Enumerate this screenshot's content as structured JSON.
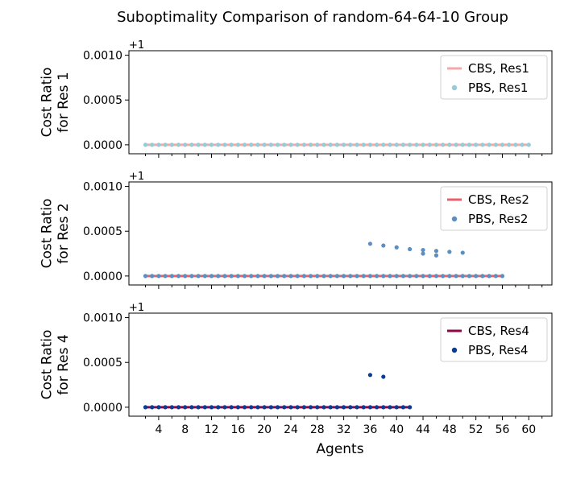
{
  "title": "Suboptimality Comparison of random-64-64-10 Group",
  "xlabel": "Agents",
  "x_ticks": [
    4,
    8,
    12,
    16,
    20,
    24,
    28,
    32,
    36,
    40,
    44,
    48,
    52,
    56,
    60
  ],
  "colors": {
    "cbs_res1": "#f4a9a8",
    "pbs_res1": "#96cbd8",
    "cbs_res2": "#e8606a",
    "pbs_res2": "#5b8fc4",
    "cbs_res4": "#8e0848",
    "pbs_res4": "#0a3d91"
  },
  "chart_data": [
    {
      "type": "line",
      "ylabel": [
        "Cost Ratio",
        "for Res 1"
      ],
      "offset_text": "+1",
      "xlim": [
        -0.5,
        63.5
      ],
      "ylim": [
        -0.0001,
        0.00105
      ],
      "y_ticks": [
        0.0,
        0.0005,
        0.001
      ],
      "y_tick_labels": [
        "0.0000",
        "0.0005",
        "0.0010"
      ],
      "legend_position": "top-right",
      "series": [
        {
          "name": "CBS, Res1",
          "style": "line",
          "color": "#f4a9a8",
          "x": [
            2,
            60
          ],
          "y": [
            0,
            0
          ]
        },
        {
          "name": "PBS, Res1",
          "style": "points",
          "color": "#96cbd8",
          "x": [
            2,
            3,
            4,
            5,
            6,
            7,
            8,
            9,
            10,
            11,
            12,
            13,
            14,
            15,
            16,
            17,
            18,
            19,
            20,
            21,
            22,
            23,
            24,
            25,
            26,
            27,
            28,
            29,
            30,
            31,
            32,
            33,
            34,
            35,
            36,
            37,
            38,
            39,
            40,
            41,
            42,
            43,
            44,
            45,
            46,
            47,
            48,
            49,
            50,
            51,
            52,
            53,
            54,
            55,
            56,
            57,
            58,
            59,
            60
          ],
          "y": [
            0,
            0,
            0,
            0,
            0,
            0,
            0,
            0,
            0,
            0,
            0,
            0,
            0,
            0,
            0,
            0,
            0,
            0,
            0,
            0,
            0,
            0,
            0,
            0,
            0,
            0,
            0,
            0,
            0,
            0,
            0,
            0,
            0,
            0,
            0,
            0,
            0,
            0,
            0,
            0,
            0,
            0,
            0,
            0,
            0,
            0,
            0,
            0,
            0,
            0,
            0,
            0,
            0,
            0,
            0,
            0,
            0,
            0,
            0
          ]
        }
      ]
    },
    {
      "type": "line",
      "ylabel": [
        "Cost Ratio",
        "for Res 2"
      ],
      "offset_text": "+1",
      "xlim": [
        -0.5,
        63.5
      ],
      "ylim": [
        -0.0001,
        0.00105
      ],
      "y_ticks": [
        0.0,
        0.0005,
        0.001
      ],
      "y_tick_labels": [
        "0.0000",
        "0.0005",
        "0.0010"
      ],
      "legend_position": "top-right",
      "series": [
        {
          "name": "CBS, Res2",
          "style": "line",
          "color": "#e8606a",
          "x": [
            2,
            56
          ],
          "y": [
            0,
            0
          ]
        },
        {
          "name": "PBS, Res2",
          "style": "points",
          "color": "#5b8fc4",
          "x": [
            2,
            3,
            4,
            5,
            6,
            7,
            8,
            9,
            10,
            11,
            12,
            13,
            14,
            15,
            16,
            17,
            18,
            19,
            20,
            21,
            22,
            23,
            24,
            25,
            26,
            27,
            28,
            29,
            30,
            31,
            32,
            33,
            34,
            35,
            36,
            37,
            38,
            39,
            40,
            41,
            42,
            43,
            44,
            45,
            46,
            47,
            48,
            49,
            50,
            51,
            52,
            53,
            54,
            55,
            56,
            36,
            38,
            40,
            42,
            44,
            44,
            46,
            46,
            48,
            50
          ],
          "y": [
            0,
            0,
            0,
            0,
            0,
            0,
            0,
            0,
            0,
            0,
            0,
            0,
            0,
            0,
            0,
            0,
            0,
            0,
            0,
            0,
            0,
            0,
            0,
            0,
            0,
            0,
            0,
            0,
            0,
            0,
            0,
            0,
            0,
            0,
            0,
            0,
            0,
            0,
            0,
            0,
            0,
            0,
            0,
            0,
            0,
            0,
            0,
            0,
            0,
            0,
            0,
            0,
            0,
            0,
            0,
            0.00036,
            0.00034,
            0.00032,
            0.0003,
            0.00029,
            0.00025,
            0.00028,
            0.00023,
            0.00027,
            0.00026
          ]
        }
      ]
    },
    {
      "type": "line",
      "ylabel": [
        "Cost Ratio",
        "for Res 4"
      ],
      "offset_text": "+1",
      "xlim": [
        -0.5,
        63.5
      ],
      "ylim": [
        -0.0001,
        0.00105
      ],
      "y_ticks": [
        0.0,
        0.0005,
        0.001
      ],
      "y_tick_labels": [
        "0.0000",
        "0.0005",
        "0.0010"
      ],
      "legend_position": "top-right",
      "series": [
        {
          "name": "CBS, Res4",
          "style": "line",
          "color": "#8e0848",
          "x": [
            2,
            42
          ],
          "y": [
            0,
            0
          ]
        },
        {
          "name": "PBS, Res4",
          "style": "points",
          "color": "#0a3d91",
          "x": [
            2,
            3,
            4,
            5,
            6,
            7,
            8,
            9,
            10,
            11,
            12,
            13,
            14,
            15,
            16,
            17,
            18,
            19,
            20,
            21,
            22,
            23,
            24,
            25,
            26,
            27,
            28,
            29,
            30,
            31,
            32,
            33,
            34,
            35,
            36,
            37,
            38,
            39,
            40,
            41,
            42,
            36,
            38
          ],
          "y": [
            0,
            0,
            0,
            0,
            0,
            0,
            0,
            0,
            0,
            0,
            0,
            0,
            0,
            0,
            0,
            0,
            0,
            0,
            0,
            0,
            0,
            0,
            0,
            0,
            0,
            0,
            0,
            0,
            0,
            0,
            0,
            0,
            0,
            0,
            0,
            0,
            0,
            0,
            0,
            0,
            0,
            0.00036,
            0.00034
          ]
        }
      ]
    }
  ]
}
